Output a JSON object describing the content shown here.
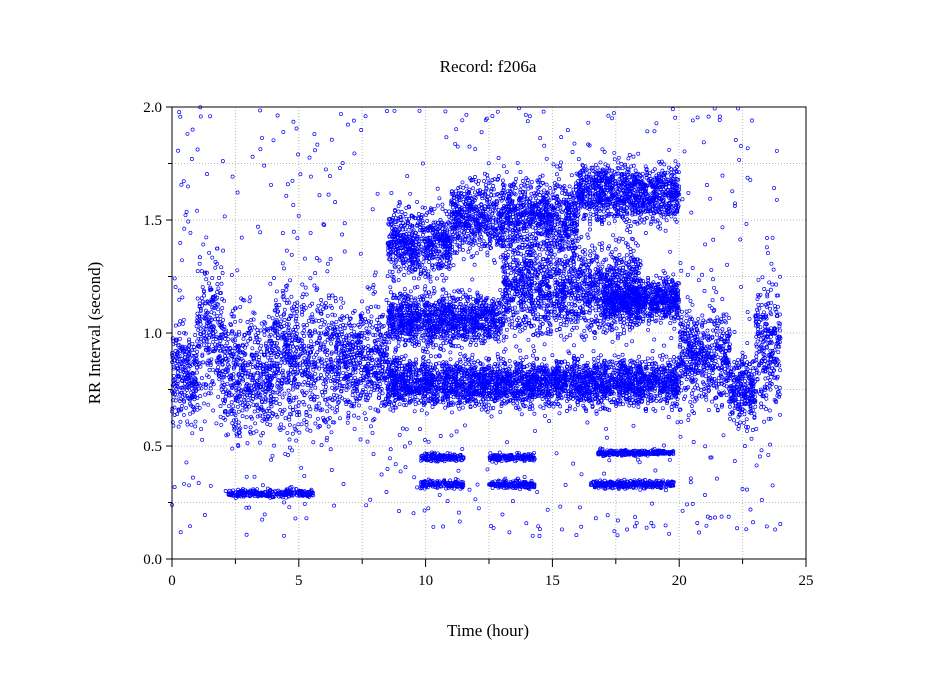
{
  "chart_data": {
    "type": "scatter",
    "title": "Record:  f206a",
    "xlabel": "Time (hour)",
    "ylabel": "RR Interval (second)",
    "xlim": [
      0,
      25
    ],
    "ylim": [
      0.0,
      2.0
    ],
    "x_ticks": [
      0,
      5,
      10,
      15,
      20,
      25
    ],
    "x_tick_labels": [
      "0",
      "5",
      "10",
      "15",
      "20",
      "25"
    ],
    "y_ticks": [
      0.0,
      0.5,
      1.0,
      1.5,
      2.0
    ],
    "y_tick_labels": [
      "0.0",
      "0.5",
      "1.0",
      "1.5",
      "2.0"
    ],
    "grid": true,
    "marker": "open-circle",
    "point_color": "#0000ff",
    "bands": [
      {
        "x_start": 0.0,
        "x_end": 1.0,
        "y_center": 0.82,
        "y_spread": 0.35
      },
      {
        "x_start": 1.0,
        "x_end": 2.0,
        "y_center": 1.0,
        "y_spread": 0.55
      },
      {
        "x_start": 2.0,
        "x_end": 4.0,
        "y_center": 0.82,
        "y_spread": 0.45
      },
      {
        "x_start": 4.0,
        "x_end": 6.5,
        "y_center": 0.88,
        "y_spread": 0.55
      },
      {
        "x_start": 6.5,
        "x_end": 8.5,
        "y_center": 0.88,
        "y_spread": 0.4
      },
      {
        "x_start": 8.5,
        "x_end": 11.0,
        "y_center": 1.4,
        "y_spread": 0.25
      },
      {
        "x_start": 8.5,
        "x_end": 13.0,
        "y_center": 1.06,
        "y_spread": 0.2
      },
      {
        "x_start": 8.5,
        "x_end": 20.0,
        "y_center": 0.78,
        "y_spread": 0.18
      },
      {
        "x_start": 11.0,
        "x_end": 16.0,
        "y_center": 1.52,
        "y_spread": 0.28
      },
      {
        "x_start": 13.0,
        "x_end": 18.5,
        "y_center": 1.2,
        "y_spread": 0.35
      },
      {
        "x_start": 16.0,
        "x_end": 20.0,
        "y_center": 1.62,
        "y_spread": 0.22
      },
      {
        "x_start": 17.0,
        "x_end": 20.0,
        "y_center": 1.15,
        "y_spread": 0.15
      },
      {
        "x_start": 20.0,
        "x_end": 22.0,
        "y_center": 0.9,
        "y_spread": 0.35
      },
      {
        "x_start": 22.0,
        "x_end": 23.0,
        "y_center": 0.75,
        "y_spread": 0.25
      },
      {
        "x_start": 23.0,
        "x_end": 24.0,
        "y_center": 0.95,
        "y_spread": 0.45
      },
      {
        "x_start": 2.2,
        "x_end": 5.6,
        "y_center": 0.29,
        "y_spread": 0.03
      },
      {
        "x_start": 9.8,
        "x_end": 11.5,
        "y_center": 0.33,
        "y_spread": 0.03
      },
      {
        "x_start": 12.5,
        "x_end": 14.3,
        "y_center": 0.33,
        "y_spread": 0.03
      },
      {
        "x_start": 16.5,
        "x_end": 19.8,
        "y_center": 0.33,
        "y_spread": 0.03
      },
      {
        "x_start": 9.8,
        "x_end": 11.5,
        "y_center": 0.45,
        "y_spread": 0.03
      },
      {
        "x_start": 12.5,
        "x_end": 14.3,
        "y_center": 0.45,
        "y_spread": 0.03
      },
      {
        "x_start": 16.8,
        "x_end": 19.8,
        "y_center": 0.47,
        "y_spread": 0.02
      }
    ],
    "outliers_y_range": [
      0.1,
      2.0
    ]
  }
}
